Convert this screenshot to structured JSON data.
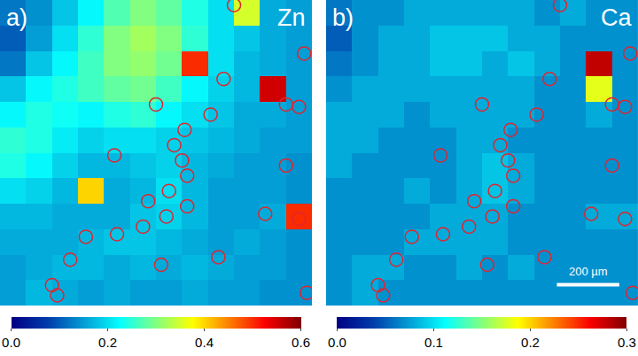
{
  "chart_data": [
    {
      "type": "heatmap",
      "annotations": [
        "a)",
        "Zn"
      ],
      "color": "Jet",
      "tick_labels": false,
      "xlim": [
        -0.5,
        11.5
      ],
      "ylim": [
        11.5,
        -0.5
      ],
      "x": [
        0,
        1,
        2,
        3,
        4,
        5,
        6,
        7,
        8,
        9,
        10,
        11
      ],
      "y": [
        0,
        1,
        2,
        3,
        4,
        5,
        6,
        7,
        8,
        9,
        10,
        11
      ],
      "values": [
        [
          0.12,
          0.14,
          0.18,
          0.22,
          0.27,
          0.3,
          0.28,
          0.24,
          0.2,
          0.35,
          0.16,
          0.15
        ],
        [
          0.1,
          0.15,
          0.2,
          0.25,
          0.3,
          0.32,
          0.3,
          0.25,
          0.2,
          0.18,
          0.16,
          0.15
        ],
        [
          0.12,
          0.18,
          0.22,
          0.26,
          0.3,
          0.31,
          0.29,
          0.5,
          0.2,
          0.17,
          0.16,
          0.15
        ],
        [
          0.18,
          0.22,
          0.24,
          0.26,
          0.28,
          0.29,
          0.26,
          0.22,
          0.19,
          0.17,
          0.55,
          0.15
        ],
        [
          0.22,
          0.24,
          0.23,
          0.22,
          0.24,
          0.25,
          0.22,
          0.2,
          0.18,
          0.16,
          0.16,
          0.15
        ],
        [
          0.25,
          0.24,
          0.21,
          0.19,
          0.2,
          0.2,
          0.19,
          0.18,
          0.17,
          0.16,
          0.15,
          0.15
        ],
        [
          0.24,
          0.22,
          0.19,
          0.17,
          0.17,
          0.18,
          0.19,
          0.17,
          0.16,
          0.15,
          0.15,
          0.14
        ],
        [
          0.2,
          0.19,
          0.17,
          0.4,
          0.16,
          0.17,
          0.2,
          0.17,
          0.15,
          0.15,
          0.15,
          0.14
        ],
        [
          0.17,
          0.17,
          0.16,
          0.16,
          0.16,
          0.18,
          0.19,
          0.17,
          0.15,
          0.15,
          0.16,
          0.5
        ],
        [
          0.16,
          0.16,
          0.16,
          0.17,
          0.18,
          0.18,
          0.17,
          0.16,
          0.15,
          0.16,
          0.15,
          0.14
        ],
        [
          0.15,
          0.16,
          0.17,
          0.17,
          0.16,
          0.17,
          0.16,
          0.17,
          0.16,
          0.15,
          0.15,
          0.14
        ],
        [
          0.15,
          0.17,
          0.16,
          0.15,
          0.16,
          0.15,
          0.15,
          0.16,
          0.15,
          0.15,
          0.14,
          0.14
        ]
      ],
      "colorbar": {
        "range": [
          0,
          0.6
        ],
        "ticks": [
          {
            "value": 0,
            "label": "0.0"
          },
          0.2,
          0.4,
          0.6
        ]
      },
      "markers": {
        "marker": "circle-open",
        "color": "#e0252f",
        "x": [
          8.5,
          11.2,
          8.1,
          5.5,
          7.6,
          10.5,
          11.0,
          6.6,
          6.2,
          3.9,
          6.5,
          6.7,
          10.5,
          6.0,
          5.2,
          6.7,
          5.9,
          9.7,
          11.0,
          5.0,
          4.0,
          2.8,
          7.9,
          2.2,
          5.7,
          11.3,
          1.5,
          1.7
        ],
        "y": [
          -0.3,
          1.6,
          2.6,
          3.6,
          4.0,
          3.6,
          3.7,
          4.6,
          5.2,
          5.6,
          5.8,
          6.4,
          6.0,
          7.0,
          7.4,
          7.6,
          8.0,
          7.9,
          8.1,
          8.4,
          8.7,
          8.8,
          9.6,
          9.7,
          9.9,
          11.0,
          10.7,
          11.1
        ]
      }
    },
    {
      "type": "heatmap",
      "annotations": [
        "b)",
        "Ca",
        "200 µm"
      ],
      "color": "Jet",
      "tick_labels": false,
      "xlim": [
        -0.5,
        11.5
      ],
      "ylim": [
        11.5,
        -0.5
      ],
      "x": [
        0,
        1,
        2,
        3,
        4,
        5,
        6,
        7,
        8,
        9,
        10,
        11
      ],
      "y": [
        0,
        1,
        2,
        3,
        4,
        5,
        6,
        7,
        8,
        9,
        10,
        11
      ],
      "values": [
        [
          0.06,
          0.07,
          0.07,
          0.08,
          0.08,
          0.08,
          0.08,
          0.08,
          0.07,
          0.08,
          0.07,
          0.07
        ],
        [
          0.05,
          0.07,
          0.08,
          0.08,
          0.09,
          0.09,
          0.09,
          0.08,
          0.08,
          0.07,
          0.07,
          0.07
        ],
        [
          0.06,
          0.07,
          0.08,
          0.08,
          0.09,
          0.09,
          0.08,
          0.09,
          0.08,
          0.07,
          0.28,
          0.07
        ],
        [
          0.07,
          0.08,
          0.08,
          0.08,
          0.08,
          0.08,
          0.08,
          0.08,
          0.07,
          0.07,
          0.18,
          0.07
        ],
        [
          0.08,
          0.08,
          0.08,
          0.07,
          0.08,
          0.08,
          0.08,
          0.08,
          0.07,
          0.07,
          0.08,
          0.07
        ],
        [
          0.08,
          0.08,
          0.07,
          0.07,
          0.07,
          0.08,
          0.08,
          0.07,
          0.07,
          0.07,
          0.07,
          0.07
        ],
        [
          0.08,
          0.07,
          0.07,
          0.07,
          0.07,
          0.08,
          0.09,
          0.08,
          0.07,
          0.07,
          0.07,
          0.07
        ],
        [
          0.07,
          0.07,
          0.07,
          0.08,
          0.07,
          0.08,
          0.09,
          0.08,
          0.07,
          0.07,
          0.07,
          0.07
        ],
        [
          0.07,
          0.07,
          0.07,
          0.07,
          0.08,
          0.08,
          0.08,
          0.07,
          0.07,
          0.07,
          0.08,
          0.08
        ],
        [
          0.07,
          0.07,
          0.07,
          0.08,
          0.08,
          0.08,
          0.08,
          0.07,
          0.07,
          0.07,
          0.07,
          0.07
        ],
        [
          0.07,
          0.08,
          0.08,
          0.07,
          0.07,
          0.08,
          0.07,
          0.08,
          0.07,
          0.07,
          0.07,
          0.07
        ],
        [
          0.07,
          0.08,
          0.07,
          0.07,
          0.07,
          0.07,
          0.07,
          0.07,
          0.07,
          0.07,
          0.07,
          0.07
        ]
      ],
      "colorbar": {
        "range": [
          0,
          0.3
        ],
        "ticks": [
          {
            "value": 0,
            "label": "0.0"
          },
          0.1,
          0.2,
          0.3
        ]
      },
      "markers": {
        "marker": "circle-open",
        "color": "#e0252f",
        "x": [
          8.5,
          11.2,
          8.1,
          5.5,
          7.6,
          10.5,
          11.0,
          6.6,
          6.2,
          3.9,
          6.5,
          6.7,
          10.5,
          6.0,
          5.2,
          6.7,
          5.9,
          9.7,
          11.0,
          5.0,
          4.0,
          2.8,
          7.9,
          2.2,
          5.7,
          11.3,
          1.5,
          1.7
        ],
        "y": [
          -0.3,
          1.6,
          2.6,
          3.6,
          4.0,
          3.6,
          3.7,
          4.6,
          5.2,
          5.6,
          5.8,
          6.4,
          6.0,
          7.0,
          7.4,
          7.6,
          8.0,
          7.9,
          8.1,
          8.4,
          8.7,
          8.8,
          9.6,
          9.7,
          9.9,
          11.0,
          10.7,
          11.1
        ]
      }
    }
  ]
}
